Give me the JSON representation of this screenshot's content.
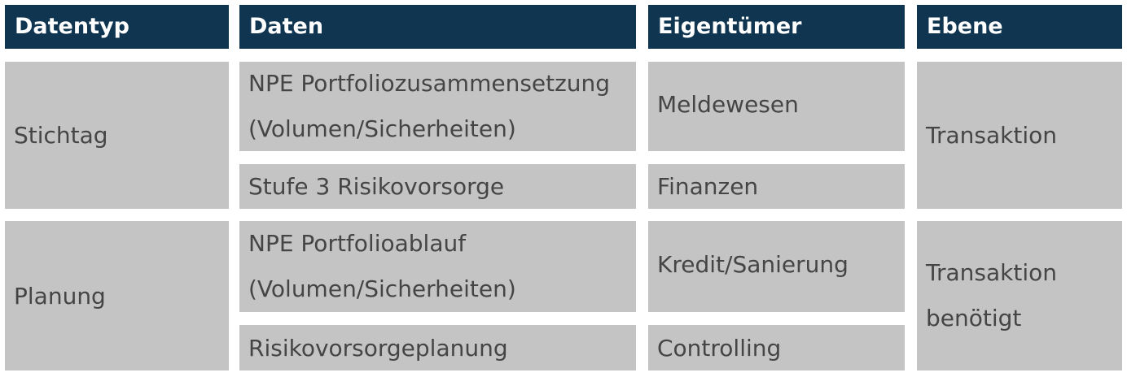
{
  "table": {
    "headers": {
      "datentyp": "Datentyp",
      "daten": "Daten",
      "eigentuemer": "Eigentümer",
      "ebene": "Ebene"
    },
    "groups": [
      {
        "datentyp": "Stichtag",
        "ebene": "Transaktion",
        "rows": [
          {
            "daten": "NPE Portfoliozusammensetzung\n(Volumen/Sicherheiten)",
            "eigentuemer": "Meldewesen"
          },
          {
            "daten": "Stufe 3 Risikovorsorge",
            "eigentuemer": "Finanzen"
          }
        ]
      },
      {
        "datentyp": "Planung",
        "ebene": "Transaktion\nbenötigt",
        "rows": [
          {
            "daten": "NPE Portfolioablauf\n(Volumen/Sicherheiten)",
            "eigentuemer": "Kredit/Sanierung"
          },
          {
            "daten": "Risikovorsorgeplanung",
            "eigentuemer": "Controlling"
          }
        ]
      }
    ]
  }
}
